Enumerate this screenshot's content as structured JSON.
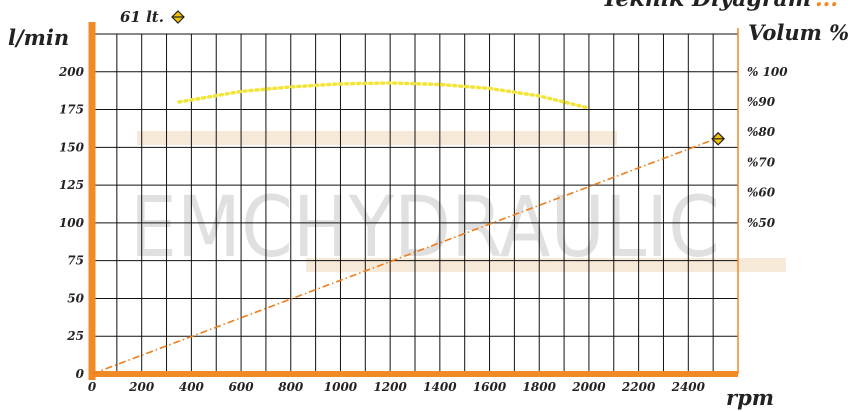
{
  "header": {
    "title_text": "Teknik Diyagram",
    "title_ellipsis": "..."
  },
  "chart_data": {
    "type": "line",
    "watermark": "EMCHYDRAULIC",
    "xlabel": "rpm",
    "ylabel_left": "l/min",
    "ylabel_right": "Volum %",
    "x_ticks": [
      0,
      200,
      400,
      600,
      800,
      1000,
      1200,
      1400,
      1600,
      1800,
      2000,
      2200,
      2400
    ],
    "x_tick_labels": [
      "0",
      "200",
      "400",
      "600",
      "800",
      "1000",
      "1200",
      "1400",
      "1600",
      "1800",
      "2000",
      "2200",
      "2400"
    ],
    "xlim": [
      0,
      2600
    ],
    "y_ticks_left": [
      0,
      25,
      50,
      75,
      100,
      125,
      150,
      175,
      200
    ],
    "y_tick_labels_left": [
      "0",
      "25",
      "50",
      "75",
      "100",
      "125",
      "150",
      "175",
      "200"
    ],
    "ylim_left": [
      0,
      225
    ],
    "y_ticks_right": [
      50,
      60,
      70,
      80,
      90,
      100
    ],
    "y_tick_labels_right": [
      "%50",
      "%60",
      "%70",
      "%80",
      "%90",
      "% 100"
    ],
    "ylim_right": [
      0,
      112.5
    ],
    "grid": true,
    "colors": {
      "axis": "#f08a24",
      "grid": "#111111",
      "flow_line": "#ef7d1a",
      "efficiency_line": "#f2e53a",
      "marker_fill": "#f2c200"
    },
    "series": [
      {
        "axis": "left",
        "style": "dash-dot",
        "x": [
          0,
          2500
        ],
        "y": [
          0,
          155
        ]
      },
      {
        "axis": "right",
        "style": "dotted",
        "x": [
          350,
          600,
          800,
          1000,
          1200,
          1400,
          1600,
          1800,
          2000
        ],
        "y": [
          90,
          93.5,
          95,
          96,
          96.3,
          95.8,
          94.5,
          92,
          88
        ]
      }
    ],
    "marker": {
      "x": 2500,
      "y": 155
    },
    "annotation": {
      "label": "61 lt."
    }
  }
}
